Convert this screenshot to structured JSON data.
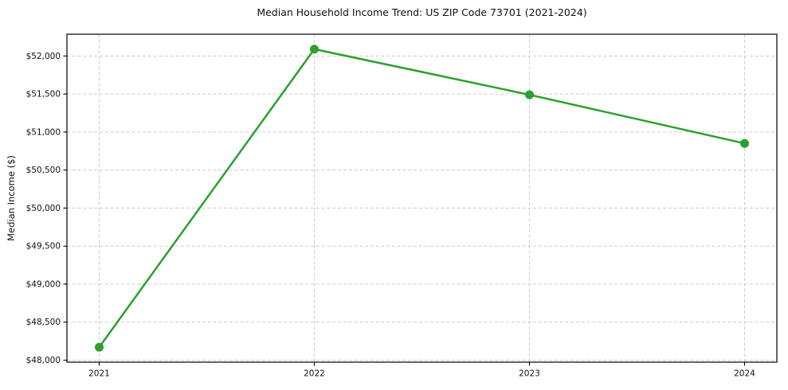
{
  "chart_data": {
    "type": "line",
    "title": "Median Household Income Trend: US ZIP Code 73701 (2021-2024)",
    "xlabel": "",
    "ylabel": "Median Income ($)",
    "categories": [
      "2021",
      "2022",
      "2023",
      "2024"
    ],
    "values": [
      48170,
      52090,
      51490,
      50850
    ],
    "line_color": "#2ca02c",
    "marker": "circle",
    "marker_color": "#2ca02c",
    "xlim": [
      2020.85,
      2024.15
    ],
    "ylim": [
      47974,
      52286
    ],
    "yticks": [
      48000,
      48500,
      49000,
      49500,
      50000,
      50500,
      51000,
      51500,
      52000
    ],
    "ytick_labels": [
      "$48,000",
      "$48,500",
      "$49,000",
      "$49,500",
      "$50,000",
      "$50,500",
      "$51,000",
      "$51,500",
      "$52,000"
    ],
    "xtick_labels": [
      "2021",
      "2022",
      "2023",
      "2024"
    ],
    "grid": true,
    "grid_style": "dashed",
    "grid_color": "#cccccc",
    "axis_color": "#000000",
    "legend_position": "none"
  }
}
